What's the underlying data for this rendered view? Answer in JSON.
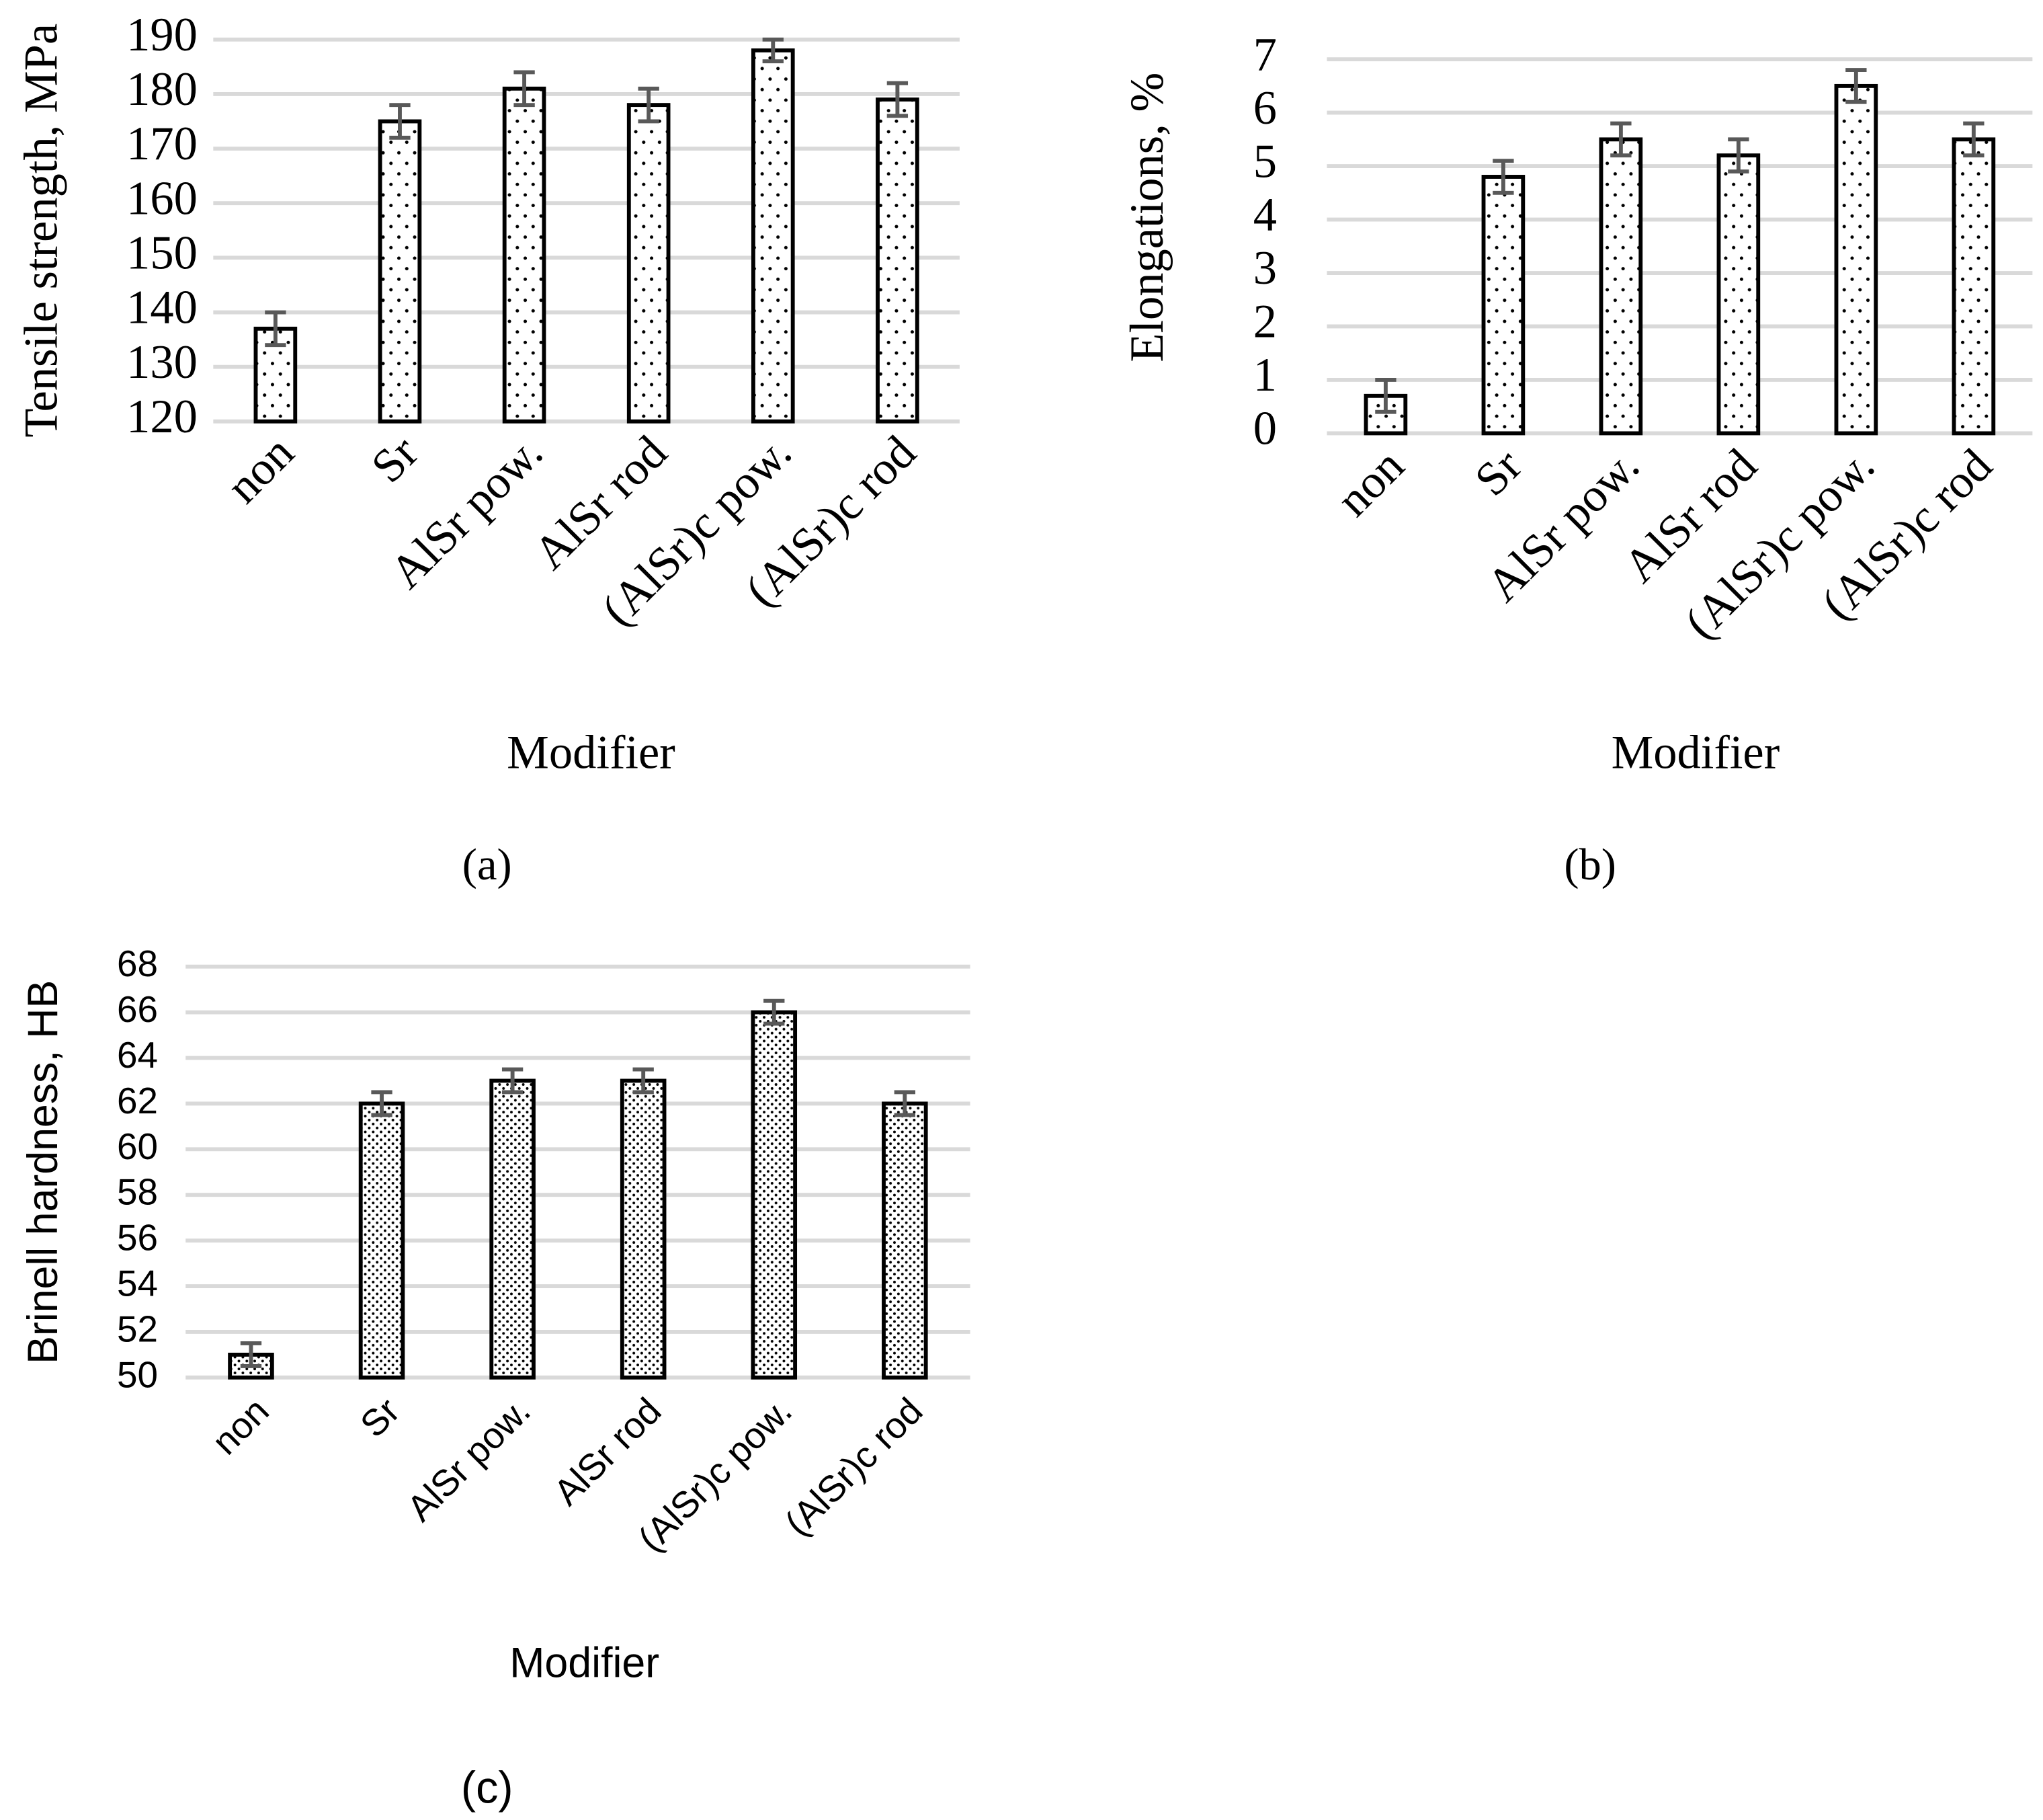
{
  "chart_data": [
    {
      "type": "bar",
      "y_label": "Tensile strength, MPa",
      "x_label": "Modifier",
      "caption": "(a)",
      "categories": [
        "non",
        "Sr",
        "AlSr pow.",
        "AlSr rod",
        "(AlSr)c pow.",
        "(AlSr)c rod"
      ],
      "values": [
        137,
        175,
        181,
        178,
        188,
        179
      ],
      "errors": [
        3,
        3,
        3,
        3,
        2,
        3
      ],
      "ylim": [
        120,
        190
      ],
      "yticks": [
        120,
        130,
        140,
        150,
        160,
        170,
        180,
        190
      ],
      "grid": true,
      "color": "#000000",
      "error_color": "#595959"
    },
    {
      "type": "bar",
      "y_label": "Elongations, %",
      "x_label": "Modifier",
      "caption": "(b)",
      "categories": [
        "non",
        "Sr",
        "AlSr pow.",
        "AlSr rod",
        "(AlSr)c pow.",
        "(AlSr)c rod"
      ],
      "values": [
        0.7,
        4.8,
        5.5,
        5.2,
        6.5,
        5.5
      ],
      "errors": [
        0.3,
        0.3,
        0.3,
        0.3,
        0.3,
        0.3
      ],
      "ylim": [
        0,
        7
      ],
      "yticks": [
        0,
        1,
        2,
        3,
        4,
        5,
        6,
        7
      ],
      "grid": true,
      "color": "#000000",
      "error_color": "#595959"
    },
    {
      "type": "bar",
      "y_label": "Brinell hardness, HB",
      "x_label": "Modifier",
      "caption": "(c)",
      "categories": [
        "non",
        "Sr",
        "AlSr pow.",
        "AlSr rod",
        "(AlSr)c pow.",
        "(AlSr)c rod"
      ],
      "values": [
        51,
        62,
        63,
        63,
        66,
        62
      ],
      "errors": [
        0.5,
        0.5,
        0.5,
        0.5,
        0.5,
        0.5
      ],
      "ylim": [
        50,
        68
      ],
      "yticks": [
        50,
        52,
        54,
        56,
        58,
        60,
        62,
        64,
        66,
        68
      ],
      "grid": true,
      "color": "#000000",
      "error_color": "#595959"
    }
  ]
}
